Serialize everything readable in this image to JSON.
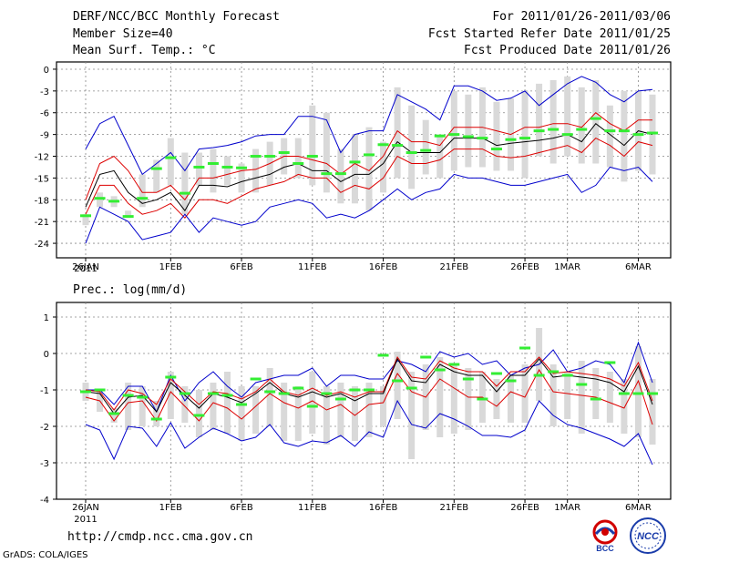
{
  "header": {
    "title": "DERF/NCC/BCC Monthly Forecast",
    "member_size": "Member Size=40",
    "variable": "Mean Surf. Temp.: °C",
    "period": "For 2011/01/26-2011/03/06",
    "started": "Fcst Started Refer Date 2011/01/25",
    "produced": "Fcst Produced Date 2011/01/26"
  },
  "footer": {
    "url": "http://cmdp.ncc.cma.gov.cn",
    "grads": "GrADS: COLA/IGES",
    "logo_bcc": "BCC",
    "logo_ncc": "NCC"
  },
  "x_ticks": [
    {
      "day": 0,
      "label": "26JAN"
    },
    {
      "day": 6,
      "label": "1FEB"
    },
    {
      "day": 11,
      "label": "6FEB"
    },
    {
      "day": 16,
      "label": "11FEB"
    },
    {
      "day": 21,
      "label": "16FEB"
    },
    {
      "day": 26,
      "label": "21FEB"
    },
    {
      "day": 31,
      "label": "26FEB"
    },
    {
      "day": 34,
      "label": "1MAR"
    },
    {
      "day": 39,
      "label": "6MAR"
    }
  ],
  "x_year_label": "2011",
  "colors": {
    "max": "#0000cc",
    "min": "#0000cc",
    "spread": "#dd0000",
    "mean": "#000000",
    "box": "#d9d9d9",
    "obs": "#33ee33"
  },
  "chart_data": [
    {
      "type": "line",
      "name": "temp",
      "title": "Mean Surf. Temp.: °C",
      "ylim": [
        -26,
        1
      ],
      "yticks": [
        0,
        -3,
        -6,
        -9,
        -12,
        -15,
        -18,
        -21,
        -24
      ],
      "days": 40,
      "series": [
        {
          "name": "max",
          "values": [
            -11,
            -7.5,
            -6.5,
            -10.5,
            -14.5,
            -13,
            -11.5,
            -14,
            -11,
            -10.8,
            -10.5,
            -10,
            -9.2,
            -9,
            -9,
            -6.5,
            -6.5,
            -7,
            -11.5,
            -9,
            -8.5,
            -8.5,
            -3.5,
            -4.5,
            -5.5,
            -7,
            -2.3,
            -2.3,
            -3,
            -4.3,
            -4,
            -3,
            -5,
            -3.5,
            -2,
            -1,
            -1.8,
            -3.5,
            -4.5,
            -3,
            -2.8
          ]
        },
        {
          "name": "upper",
          "values": [
            -18,
            -13,
            -12,
            -14,
            -17,
            -17,
            -16,
            -18,
            -15,
            -15,
            -14.5,
            -14,
            -13.8,
            -13,
            -12,
            -12,
            -12.5,
            -13,
            -14.5,
            -13,
            -14,
            -12,
            -8.5,
            -10,
            -10,
            -10.5,
            -8,
            -8,
            -8,
            -8.5,
            -9,
            -8,
            -8,
            -7.5,
            -7.5,
            -8,
            -6,
            -7.5,
            -8.5,
            -7,
            -7
          ]
        },
        {
          "name": "mean",
          "values": [
            -19,
            -14.5,
            -14,
            -17,
            -18.5,
            -18,
            -17,
            -19.5,
            -16,
            -16,
            -16.2,
            -15.5,
            -15,
            -14.5,
            -13.5,
            -13,
            -14,
            -14,
            -15.5,
            -14.5,
            -14.5,
            -13,
            -10,
            -11.5,
            -11.5,
            -11.5,
            -9.5,
            -9.5,
            -9.5,
            -10.5,
            -10.2,
            -10,
            -9.8,
            -9.5,
            -9,
            -10,
            -7.5,
            -9,
            -10.5,
            -8.5,
            -9
          ]
        },
        {
          "name": "lower",
          "values": [
            -20,
            -16,
            -16,
            -18.5,
            -20,
            -19.5,
            -18.5,
            -20.5,
            -18,
            -18,
            -18.5,
            -17.5,
            -16.5,
            -16,
            -15.5,
            -14.5,
            -15,
            -15,
            -17,
            -16,
            -16.5,
            -15,
            -12,
            -13,
            -13,
            -12.5,
            -11,
            -11,
            -11,
            -12,
            -12.2,
            -12,
            -11.5,
            -11,
            -10.5,
            -11.5,
            -9.5,
            -10.5,
            -12,
            -10,
            -10.5
          ]
        },
        {
          "name": "min",
          "values": [
            -24,
            -19,
            -20,
            -21,
            -23.5,
            -23,
            -22.5,
            -20,
            -22.5,
            -20.5,
            -21,
            -21.5,
            -21,
            -19,
            -18.5,
            -18,
            -18.5,
            -20.5,
            -20,
            -20.5,
            -19.5,
            -18,
            -16.5,
            -18,
            -17,
            -16.5,
            -14.5,
            -15,
            -15,
            -15.5,
            -16,
            -16,
            -15.5,
            -15,
            -14.5,
            -17,
            -16,
            -13.5,
            -14,
            -13.5,
            -15.5
          ]
        }
      ],
      "boxes": [
        [
          -20,
          -21.5
        ],
        [
          -17,
          -19
        ],
        [
          -17.5,
          -19
        ],
        [
          -19.5,
          -20.5
        ],
        [
          -14.5,
          -19
        ],
        [
          -12.5,
          -17
        ],
        [
          -9.5,
          -16
        ],
        [
          -11.5,
          -20
        ],
        [
          -11.5,
          -16
        ],
        [
          -11,
          -17
        ],
        [
          -12,
          -16
        ],
        [
          -13,
          -17
        ],
        [
          -11,
          -17
        ],
        [
          -10,
          -16
        ],
        [
          -9.5,
          -14.5
        ],
        [
          -9.5,
          -15
        ],
        [
          -5,
          -16
        ],
        [
          -6,
          -17
        ],
        [
          -11,
          -18.5
        ],
        [
          -9,
          -18.5
        ],
        [
          -8,
          -19.5
        ],
        [
          -10,
          -17
        ],
        [
          -2.5,
          -15
        ],
        [
          -5,
          -16.5
        ],
        [
          -7,
          -14.5
        ],
        [
          -9,
          -15
        ],
        [
          -3,
          -14
        ],
        [
          -3.5,
          -13.5
        ],
        [
          -2.5,
          -13.5
        ],
        [
          -4.5,
          -14
        ],
        [
          -4,
          -14
        ],
        [
          -3,
          -15
        ],
        [
          -2,
          -12
        ],
        [
          -1.5,
          -13
        ],
        [
          -1,
          -12
        ],
        [
          -2.5,
          -13
        ],
        [
          -1.5,
          -13
        ],
        [
          -5,
          -13.5
        ],
        [
          -3,
          -15.5
        ],
        [
          -3,
          -14
        ],
        [
          -3.5,
          -14.5
        ]
      ],
      "obs": [
        -20.2,
        -17.8,
        -18.2,
        -20.3,
        -17.8,
        -13.7,
        -12.2,
        -17.1,
        -13.5,
        -13,
        -13.5,
        -13.6,
        -12,
        -12,
        -11.5,
        -13,
        -12,
        -14.4,
        -14.4,
        -12.8,
        -11.8,
        -10.4,
        -10.5,
        -11.5,
        -11.2,
        -9.2,
        -9,
        -9.3,
        -9.5,
        -11,
        -9.7,
        -9.5,
        -8.5,
        -8.3,
        -9,
        -8.3,
        -6.8,
        -8.5,
        -8.5,
        -9,
        -8.8
      ]
    },
    {
      "type": "line",
      "name": "prec",
      "title": "Prec.: log(mm/d)",
      "ylim": [
        -4,
        1.4
      ],
      "yticks": [
        1,
        0,
        -1,
        -2,
        -3,
        -4
      ],
      "days": 40,
      "series": [
        {
          "name": "max",
          "values": [
            -1,
            -1,
            -1.4,
            -0.9,
            -0.9,
            -1.6,
            -0.6,
            -1.3,
            -0.8,
            -0.5,
            -0.9,
            -1.2,
            -0.8,
            -0.7,
            -0.6,
            -0.6,
            -0.4,
            -0.9,
            -0.6,
            -0.6,
            -0.7,
            -0.7,
            -0.2,
            -0.3,
            -0.5,
            0.05,
            -0.1,
            0,
            -0.3,
            -0.2,
            -0.6,
            -0.4,
            -0.3,
            0.1,
            -0.5,
            -0.4,
            -0.2,
            -0.3,
            -0.8,
            0.3,
            -0.8
          ]
        },
        {
          "name": "upper",
          "values": [
            -1,
            -1.05,
            -1.55,
            -1,
            -1.1,
            -1.4,
            -0.7,
            -1.05,
            -1.4,
            -1.05,
            -1.1,
            -1.25,
            -1.05,
            -0.7,
            -1.05,
            -1.15,
            -0.95,
            -1.15,
            -1.05,
            -1.2,
            -1.05,
            -1.05,
            -0.1,
            -0.65,
            -0.7,
            -0.2,
            -0.4,
            -0.5,
            -0.5,
            -0.9,
            -0.5,
            -0.5,
            -0.1,
            -0.55,
            -0.5,
            -0.55,
            -0.6,
            -0.7,
            -0.9,
            -0.25,
            -1.3
          ]
        },
        {
          "name": "mean",
          "values": [
            -1.05,
            -1.1,
            -1.65,
            -1.2,
            -1.15,
            -1.6,
            -0.8,
            -1.15,
            -1.5,
            -1.1,
            -1.2,
            -1.35,
            -1.1,
            -0.8,
            -1.1,
            -1.2,
            -1.05,
            -1.2,
            -1.1,
            -1.3,
            -1.1,
            -1.1,
            -0.15,
            -0.75,
            -0.8,
            -0.3,
            -0.5,
            -0.6,
            -0.6,
            -1.05,
            -0.6,
            -0.6,
            -0.15,
            -0.65,
            -0.6,
            -0.65,
            -0.7,
            -0.8,
            -1.05,
            -0.35,
            -1.4
          ]
        },
        {
          "name": "lower",
          "values": [
            -1.2,
            -1.3,
            -1.85,
            -1.35,
            -1.3,
            -1.85,
            -1.05,
            -1.45,
            -1.85,
            -1.35,
            -1.5,
            -1.8,
            -1.45,
            -1.1,
            -1.35,
            -1.5,
            -1.3,
            -1.55,
            -1.4,
            -1.7,
            -1.4,
            -1.35,
            -0.55,
            -1.05,
            -1.2,
            -0.7,
            -0.95,
            -1.2,
            -1.2,
            -1.45,
            -1.05,
            -1.2,
            -0.45,
            -1.05,
            -1.1,
            -1.15,
            -1.2,
            -1.35,
            -1.5,
            -0.75,
            -1.95
          ]
        },
        {
          "name": "min",
          "values": [
            -1.95,
            -2.1,
            -2.9,
            -2,
            -2.05,
            -2.55,
            -1.9,
            -2.6,
            -2.3,
            -2.05,
            -2.2,
            -2.4,
            -2.3,
            -1.95,
            -2.45,
            -2.55,
            -2.4,
            -2.45,
            -2.25,
            -2.55,
            -2.15,
            -2.3,
            -1.3,
            -1.95,
            -2.05,
            -1.65,
            -1.8,
            -2,
            -2.25,
            -2.25,
            -2.3,
            -2.1,
            -1.3,
            -1.7,
            -1.95,
            -2.05,
            -2.2,
            -2.35,
            -2.55,
            -2.2,
            -3.05
          ]
        }
      ],
      "boxes": [
        [
          -0.8,
          -1.3
        ],
        [
          -1,
          -1.6
        ],
        [
          -1.5,
          -1.9
        ],
        [
          -0.8,
          -2.1
        ],
        [
          -0.9,
          -2
        ],
        [
          -1.3,
          -2
        ],
        [
          -0.5,
          -1.8
        ],
        [
          -0.9,
          -1.9
        ],
        [
          -1,
          -2.3
        ],
        [
          -0.8,
          -2.1
        ],
        [
          -0.5,
          -2.2
        ],
        [
          -0.9,
          -2.4
        ],
        [
          -0.9,
          -2.2
        ],
        [
          -0.4,
          -2
        ],
        [
          -0.8,
          -2.4
        ],
        [
          -0.9,
          -2.4
        ],
        [
          -0.5,
          -2.2
        ],
        [
          -0.9,
          -2.5
        ],
        [
          -0.8,
          -2.3
        ],
        [
          -0.9,
          -2.4
        ],
        [
          -0.8,
          -2.3
        ],
        [
          -0.9,
          -2
        ],
        [
          0.05,
          -1.8
        ],
        [
          -0.5,
          -2.9
        ],
        [
          -0.3,
          -2.1
        ],
        [
          -0.1,
          -2.3
        ],
        [
          -0.3,
          -2.2
        ],
        [
          -0.4,
          -2.1
        ],
        [
          -0.5,
          -1.9
        ],
        [
          -0.7,
          -1.8
        ],
        [
          -0.6,
          -1.9
        ],
        [
          -0.3,
          -1.9
        ],
        [
          0.7,
          -1.3
        ],
        [
          -0.3,
          -2
        ],
        [
          -0.5,
          -1.8
        ],
        [
          -0.2,
          -2.2
        ],
        [
          -0.4,
          -1.8
        ],
        [
          -0.5,
          -1.9
        ],
        [
          -0.7,
          -2.2
        ],
        [
          0.2,
          -2.3
        ],
        [
          -0.7,
          -2.5
        ]
      ],
      "obs": [
        -1.05,
        -1,
        -1.65,
        -1.15,
        -1.2,
        -1.8,
        -0.65,
        -1.1,
        -1.7,
        -1.1,
        -1.15,
        -1.4,
        -0.7,
        -1.05,
        -1.1,
        -0.95,
        -1.45,
        -1.1,
        -1.25,
        -1,
        -1,
        -0.05,
        -0.75,
        -0.95,
        -0.1,
        -0.45,
        -0.3,
        -0.7,
        -1.25,
        -0.55,
        -0.75,
        0.15,
        -0.6,
        -0.5,
        -0.6,
        -0.85,
        -1.25,
        -0.25,
        -1.1,
        -1.1,
        -1.1
      ]
    }
  ]
}
